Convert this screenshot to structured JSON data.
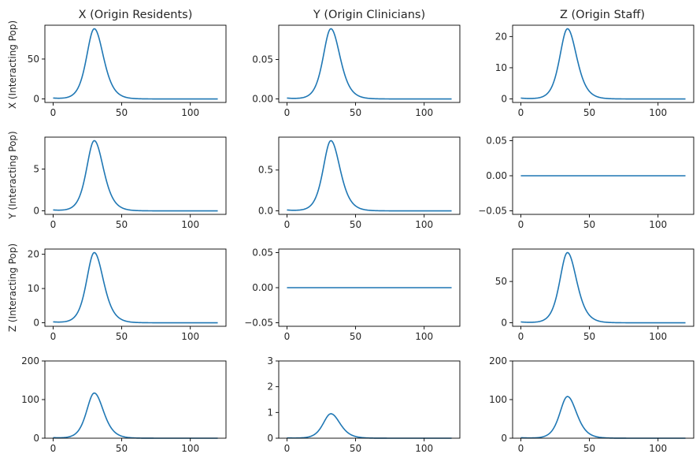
{
  "chart_data": {
    "type": "line",
    "layout": "4x3 grid",
    "line_color": "#1f77b4",
    "x_domain": [
      0,
      120
    ],
    "column_titles": [
      "X (Origin Residents)",
      "Y (Origin Clinicians)",
      "Z (Origin Staff)"
    ],
    "row_labels": [
      "X (Interacting Pop)",
      "Y (Interacting Pop)",
      "Z (Interacting Pop)",
      ""
    ],
    "panels": [
      {
        "id": "r0c0",
        "row": 0,
        "col": 0,
        "peak": 88,
        "peak_x": 30,
        "ylim": [
          -4.4,
          92.4
        ],
        "yticks": [
          0,
          50
        ],
        "ytick_labels": [
          "0",
          "50"
        ]
      },
      {
        "id": "r0c1",
        "row": 0,
        "col": 1,
        "peak": 0.089,
        "peak_x": 32,
        "ylim": [
          -0.00445,
          0.09345
        ],
        "yticks": [
          0,
          0.05
        ],
        "ytick_labels": [
          "0.00",
          "0.05"
        ]
      },
      {
        "id": "r0c2",
        "row": 0,
        "col": 2,
        "peak": 22.5,
        "peak_x": 34,
        "ylim": [
          -1.125,
          23.625
        ],
        "yticks": [
          0,
          10,
          20
        ],
        "ytick_labels": [
          "0",
          "10",
          "20"
        ]
      },
      {
        "id": "r1c0",
        "row": 1,
        "col": 0,
        "peak": 8.4,
        "peak_x": 30,
        "ylim": [
          -0.42,
          8.82
        ],
        "yticks": [
          0,
          5
        ],
        "ytick_labels": [
          "0",
          "5"
        ]
      },
      {
        "id": "r1c1",
        "row": 1,
        "col": 1,
        "peak": 0.86,
        "peak_x": 32,
        "ylim": [
          -0.043,
          0.903
        ],
        "yticks": [
          0,
          0.5
        ],
        "ytick_labels": [
          "0.0",
          "0.5"
        ]
      },
      {
        "id": "r1c2",
        "row": 1,
        "col": 2,
        "peak": 0,
        "peak_x": 34,
        "ylim": [
          -0.055,
          0.055
        ],
        "yticks": [
          -0.05,
          0,
          0.05
        ],
        "ytick_labels": [
          "−0.05",
          "0.00",
          "0.05"
        ]
      },
      {
        "id": "r2c0",
        "row": 2,
        "col": 0,
        "peak": 20.5,
        "peak_x": 30,
        "ylim": [
          -1.025,
          21.525
        ],
        "yticks": [
          0,
          10,
          20
        ],
        "ytick_labels": [
          "0",
          "10",
          "20"
        ]
      },
      {
        "id": "r2c1",
        "row": 2,
        "col": 1,
        "peak": 0,
        "peak_x": 32,
        "ylim": [
          -0.055,
          0.055
        ],
        "yticks": [
          -0.05,
          0,
          0.05
        ],
        "ytick_labels": [
          "−0.05",
          "0.00",
          "0.05"
        ]
      },
      {
        "id": "r2c2",
        "row": 2,
        "col": 2,
        "peak": 85,
        "peak_x": 34,
        "ylim": [
          -4.25,
          89.25
        ],
        "yticks": [
          0,
          50
        ],
        "ytick_labels": [
          "0",
          "50"
        ]
      },
      {
        "id": "r3c0",
        "row": 3,
        "col": 0,
        "peak": 117,
        "peak_x": 30,
        "ylim": [
          0,
          200
        ],
        "yticks": [
          0,
          100,
          200
        ],
        "ytick_labels": [
          "0",
          "100",
          "200"
        ]
      },
      {
        "id": "r3c1",
        "row": 3,
        "col": 1,
        "peak": 0.95,
        "peak_x": 32,
        "ylim": [
          0,
          3
        ],
        "yticks": [
          0,
          1,
          2,
          3
        ],
        "ytick_labels": [
          "0",
          "1",
          "2",
          "3"
        ]
      },
      {
        "id": "r3c2",
        "row": 3,
        "col": 2,
        "peak": 108,
        "peak_x": 34,
        "ylim": [
          0,
          200
        ],
        "yticks": [
          0,
          100,
          200
        ],
        "ytick_labels": [
          "0",
          "100",
          "200"
        ]
      }
    ],
    "xticks": [
      0,
      50,
      100
    ],
    "xtick_labels": [
      "0",
      "50",
      "100"
    ]
  }
}
